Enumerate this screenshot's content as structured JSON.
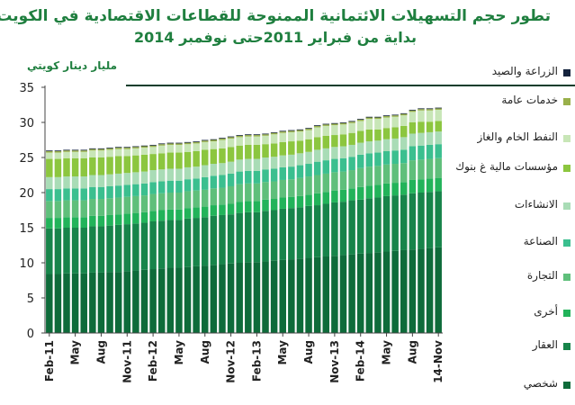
{
  "title": {
    "line1": "تطور حجم التسهيلات الائتمانية الممنوحة للقطاعات الاقتصادية في الكويت",
    "line2": "بداية من فبراير 2011حتى نوفمبر 2014"
  },
  "unit_label": "مليار دينار كويتي",
  "colors": {
    "axis": "#444444",
    "header_rule": "#0b3d2c"
  },
  "chart_data": {
    "type": "bar",
    "stacked": true,
    "ylim": [
      0,
      35
    ],
    "yticks": [
      0,
      5,
      10,
      15,
      20,
      25,
      30,
      35
    ],
    "grid": false,
    "legend_position": "right",
    "categories": [
      "Feb-11",
      "Mar",
      "Apr",
      "May",
      "Jun",
      "Jul",
      "Aug",
      "Sep",
      "Oct",
      "Nov-11",
      "Dec",
      "Jan",
      "Feb-12",
      "Mar",
      "Apr",
      "May",
      "Jun",
      "Jul",
      "Aug",
      "Sep",
      "Oct",
      "Nov-12",
      "Dec",
      "Jan",
      "Feb-13",
      "Mar",
      "Apr",
      "May",
      "Jun",
      "Jul",
      "Aug",
      "Sep",
      "Oct",
      "Nov-13",
      "Dec",
      "Jan",
      "Feb-14",
      "Mar",
      "Apr",
      "May",
      "Jun",
      "Jul",
      "Aug",
      "Sep",
      "Oct",
      "14-Nov"
    ],
    "x_tick_labels": [
      "Feb-11",
      "",
      "",
      "May",
      "",
      "",
      "Aug",
      "",
      "",
      "Nov-11",
      "",
      "",
      "Feb-12",
      "",
      "",
      "May",
      "",
      "",
      "Aug",
      "",
      "",
      "Nov-12",
      "",
      "",
      "Feb-13",
      "",
      "",
      "May",
      "",
      "",
      "Aug",
      "",
      "",
      "Nov-13",
      "",
      "",
      "Feb-14",
      "",
      "",
      "May",
      "",
      "",
      "Aug",
      "",
      "",
      "14-Nov"
    ],
    "series": [
      {
        "name": "شخصي",
        "color": "#0e6b3a",
        "values": [
          8.4,
          8.4,
          8.5,
          8.5,
          8.5,
          8.6,
          8.6,
          8.7,
          8.7,
          8.8,
          8.9,
          9.0,
          9.1,
          9.2,
          9.3,
          9.3,
          9.4,
          9.5,
          9.6,
          9.7,
          9.8,
          9.9,
          10.0,
          10.1,
          10.1,
          10.2,
          10.3,
          10.4,
          10.5,
          10.6,
          10.7,
          10.8,
          10.9,
          11.0,
          11.1,
          11.2,
          11.3,
          11.4,
          11.5,
          11.6,
          11.7,
          11.8,
          11.9,
          12.0,
          12.1,
          12.2
        ]
      },
      {
        "name": "العقار",
        "color": "#17844a",
        "values": [
          6.5,
          6.5,
          6.5,
          6.5,
          6.5,
          6.6,
          6.6,
          6.6,
          6.7,
          6.7,
          6.7,
          6.7,
          6.8,
          6.8,
          6.8,
          6.8,
          6.9,
          6.9,
          6.9,
          7.0,
          7.0,
          7.0,
          7.1,
          7.1,
          7.1,
          7.2,
          7.2,
          7.3,
          7.3,
          7.3,
          7.4,
          7.4,
          7.5,
          7.6,
          7.6,
          7.7,
          7.7,
          7.8,
          7.8,
          7.9,
          7.9,
          7.9,
          8.0,
          8.0,
          8.0,
          8.0
        ]
      },
      {
        "name": "أخرى",
        "color": "#22b35a",
        "values": [
          1.5,
          1.5,
          1.5,
          1.5,
          1.5,
          1.5,
          1.5,
          1.5,
          1.5,
          1.5,
          1.5,
          1.5,
          1.5,
          1.5,
          1.5,
          1.5,
          1.5,
          1.5,
          1.5,
          1.5,
          1.5,
          1.5,
          1.6,
          1.6,
          1.6,
          1.6,
          1.6,
          1.6,
          1.6,
          1.6,
          1.6,
          1.7,
          1.7,
          1.7,
          1.7,
          1.7,
          1.8,
          1.8,
          1.8,
          1.8,
          1.8,
          1.8,
          1.9,
          1.9,
          1.9,
          1.9
        ]
      },
      {
        "name": "التجارة",
        "color": "#5fbf7b",
        "values": [
          2.4,
          2.4,
          2.4,
          2.4,
          2.4,
          2.4,
          2.4,
          2.4,
          2.4,
          2.4,
          2.4,
          2.4,
          2.4,
          2.4,
          2.4,
          2.4,
          2.4,
          2.4,
          2.4,
          2.4,
          2.4,
          2.5,
          2.5,
          2.5,
          2.5,
          2.5,
          2.5,
          2.5,
          2.5,
          2.6,
          2.6,
          2.6,
          2.6,
          2.6,
          2.6,
          2.6,
          2.7,
          2.7,
          2.7,
          2.7,
          2.7,
          2.7,
          2.8,
          2.8,
          2.8,
          2.8
        ]
      },
      {
        "name": "الصناعة",
        "color": "#3bbf8f",
        "values": [
          1.7,
          1.7,
          1.7,
          1.7,
          1.7,
          1.7,
          1.7,
          1.7,
          1.7,
          1.7,
          1.7,
          1.7,
          1.7,
          1.7,
          1.7,
          1.7,
          1.7,
          1.7,
          1.8,
          1.8,
          1.8,
          1.8,
          1.8,
          1.8,
          1.8,
          1.8,
          1.8,
          1.8,
          1.8,
          1.8,
          1.8,
          1.9,
          1.9,
          1.9,
          1.9,
          1.9,
          1.9,
          1.9,
          1.9,
          1.9,
          1.9,
          1.9,
          2.0,
          2.0,
          2.0,
          2.0
        ]
      },
      {
        "name": "الانشاءات",
        "color": "#a9dcb6",
        "values": [
          1.7,
          1.7,
          1.7,
          1.7,
          1.7,
          1.7,
          1.7,
          1.7,
          1.7,
          1.7,
          1.7,
          1.7,
          1.7,
          1.7,
          1.7,
          1.7,
          1.7,
          1.7,
          1.7,
          1.7,
          1.7,
          1.7,
          1.7,
          1.7,
          1.7,
          1.7,
          1.7,
          1.7,
          1.7,
          1.7,
          1.7,
          1.7,
          1.7,
          1.7,
          1.7,
          1.7,
          1.7,
          1.7,
          1.7,
          1.7,
          1.7,
          1.8,
          1.8,
          1.8,
          1.8,
          1.8
        ]
      },
      {
        "name": "مؤسسات مالية غ بنوك",
        "color": "#8cc63f",
        "values": [
          2.6,
          2.6,
          2.6,
          2.6,
          2.6,
          2.5,
          2.5,
          2.5,
          2.5,
          2.4,
          2.4,
          2.4,
          2.3,
          2.3,
          2.3,
          2.3,
          2.2,
          2.2,
          2.2,
          2.1,
          2.1,
          2.1,
          2.0,
          2.0,
          2.0,
          1.9,
          1.9,
          1.9,
          1.9,
          1.8,
          1.8,
          1.8,
          1.8,
          1.7,
          1.7,
          1.7,
          1.7,
          1.7,
          1.6,
          1.6,
          1.6,
          1.6,
          1.6,
          1.6,
          1.5,
          1.5
        ]
      },
      {
        "name": "النفط الخام والغاز",
        "color": "#c8e6b7",
        "values": [
          0.9,
          0.9,
          0.9,
          0.9,
          0.9,
          1.0,
          1.0,
          1.0,
          1.0,
          1.0,
          1.0,
          1.0,
          1.0,
          1.1,
          1.1,
          1.1,
          1.1,
          1.1,
          1.1,
          1.1,
          1.2,
          1.2,
          1.2,
          1.2,
          1.2,
          1.2,
          1.3,
          1.3,
          1.3,
          1.3,
          1.3,
          1.4,
          1.4,
          1.4,
          1.4,
          1.4,
          1.4,
          1.5,
          1.5,
          1.5,
          1.5,
          1.5,
          1.5,
          1.6,
          1.6,
          1.6
        ]
      },
      {
        "name": "خدمات عامة",
        "color": "#99b04a",
        "values": [
          0.2,
          0.2,
          0.2,
          0.2,
          0.2,
          0.2,
          0.2,
          0.2,
          0.2,
          0.2,
          0.2,
          0.2,
          0.2,
          0.2,
          0.2,
          0.2,
          0.2,
          0.2,
          0.2,
          0.2,
          0.2,
          0.2,
          0.2,
          0.2,
          0.2,
          0.2,
          0.2,
          0.2,
          0.2,
          0.2,
          0.2,
          0.2,
          0.2,
          0.2,
          0.2,
          0.2,
          0.2,
          0.2,
          0.2,
          0.2,
          0.2,
          0.2,
          0.2,
          0.2,
          0.2,
          0.2
        ]
      },
      {
        "name": "الزراعة والصيد",
        "color": "#14233d",
        "values": [
          0.1,
          0.1,
          0.1,
          0.1,
          0.1,
          0.1,
          0.1,
          0.1,
          0.1,
          0.1,
          0.1,
          0.1,
          0.1,
          0.1,
          0.1,
          0.1,
          0.1,
          0.1,
          0.1,
          0.1,
          0.1,
          0.1,
          0.1,
          0.1,
          0.1,
          0.1,
          0.1,
          0.1,
          0.1,
          0.1,
          0.1,
          0.1,
          0.1,
          0.1,
          0.1,
          0.1,
          0.1,
          0.1,
          0.1,
          0.1,
          0.1,
          0.1,
          0.1,
          0.1,
          0.1,
          0.1
        ]
      }
    ]
  }
}
